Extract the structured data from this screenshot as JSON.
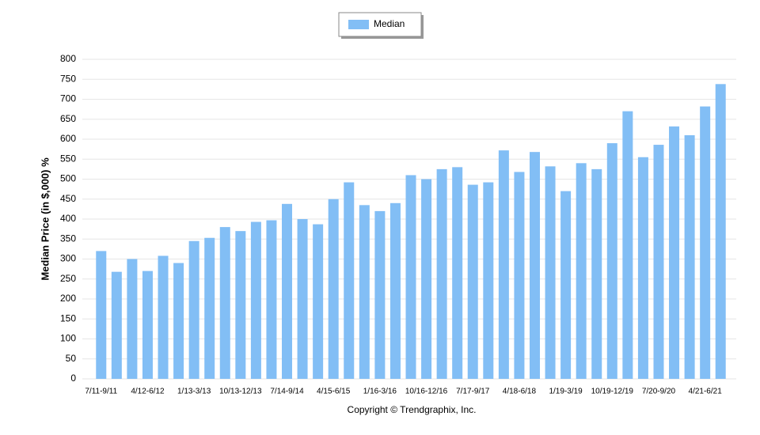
{
  "chart_data": {
    "type": "bar",
    "categories": [
      "7/11-9/11",
      null,
      null,
      "4/12-6/12",
      null,
      null,
      "1/13-3/13",
      null,
      null,
      "10/13-12/13",
      null,
      null,
      "7/14-9/14",
      null,
      null,
      "4/15-6/15",
      null,
      null,
      "1/16-3/16",
      null,
      null,
      "10/16-12/16",
      null,
      null,
      "7/17-9/17",
      null,
      null,
      "4/18-6/18",
      null,
      null,
      "1/19-3/19",
      null,
      null,
      "10/19-12/19",
      null,
      null,
      "7/20-9/20",
      null,
      null,
      "4/21-6/21",
      null
    ],
    "series": [
      {
        "name": "Median",
        "color": "#82bef5",
        "values": [
          320,
          268,
          300,
          270,
          308,
          290,
          345,
          353,
          380,
          370,
          393,
          397,
          438,
          400,
          387,
          450,
          492,
          435,
          420,
          440,
          510,
          500,
          525,
          530,
          486,
          492,
          572,
          518,
          568,
          532,
          470,
          540,
          525,
          590,
          670,
          555,
          586,
          632,
          610,
          682,
          738
        ]
      }
    ],
    "y_label": "Median Price (in $,000) %",
    "footer": "Copyright © Trendgraphix, Inc.",
    "ylim": [
      0,
      800
    ],
    "yticks": [
      0,
      50,
      100,
      150,
      200,
      250,
      300,
      350,
      400,
      450,
      500,
      550,
      600,
      650,
      700,
      750,
      800
    ],
    "grid": true
  }
}
